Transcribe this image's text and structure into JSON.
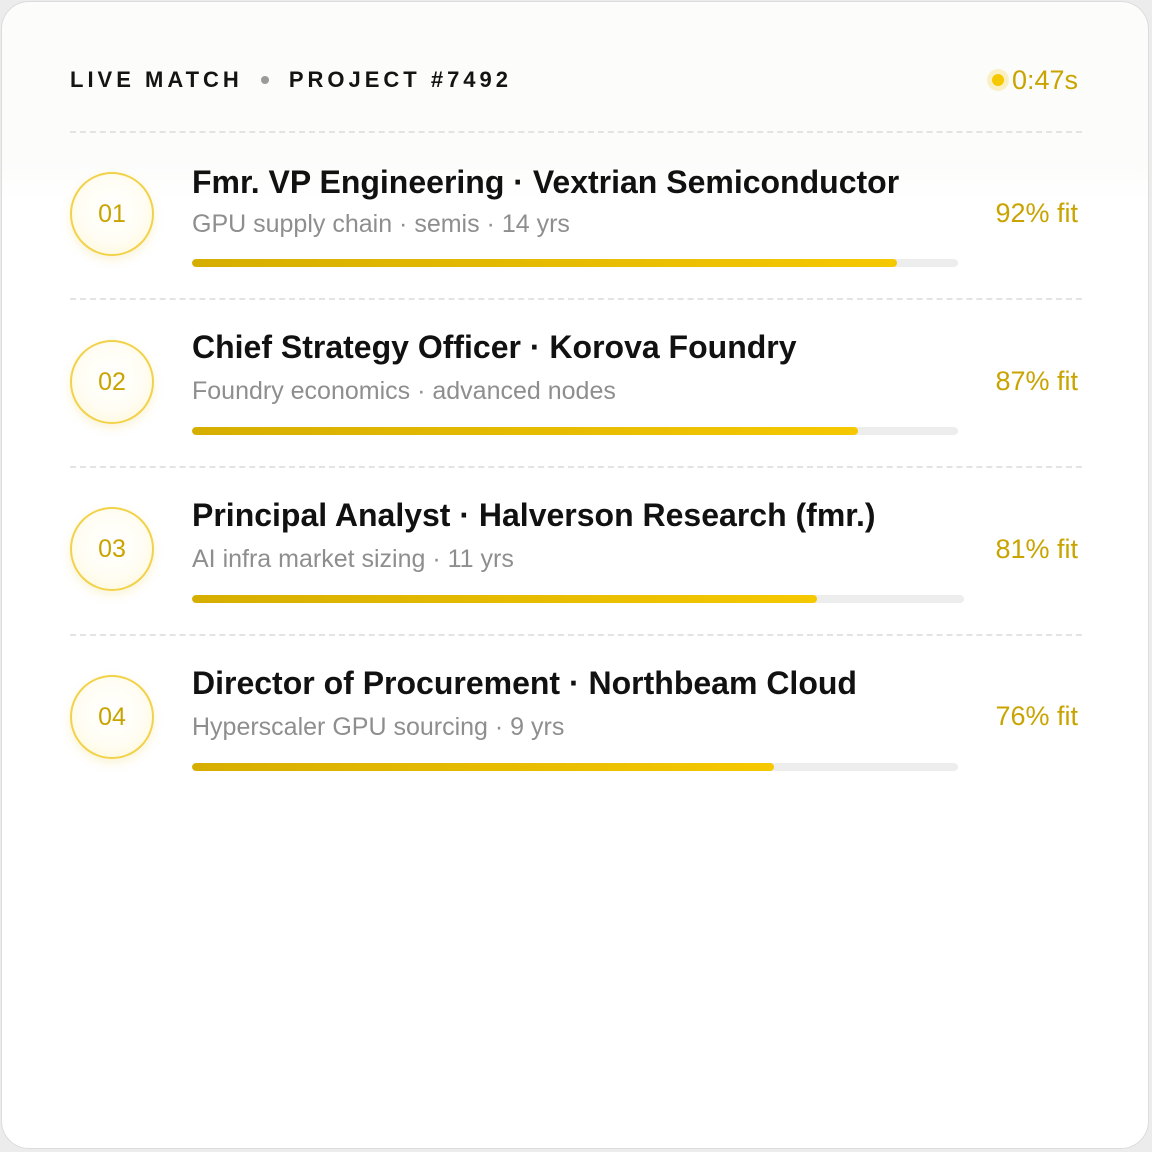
{
  "header": {
    "live_label": "LIVE MATCH",
    "project_label": "PROJECT #7492",
    "timer": "0:47s"
  },
  "colors": {
    "accent": "#f5c800",
    "accent_dark": "#c9a400",
    "track": "#ededed"
  },
  "matches": [
    {
      "rank": "01",
      "title": "Fmr. VP Engineering · Vextrian Semiconductor",
      "subtitle": "GPU supply chain · semis · 14 yrs",
      "fit_label": "92% fit",
      "fit": 0.92
    },
    {
      "rank": "02",
      "title": "Chief Strategy Officer · Korova Foundry",
      "subtitle": "Foundry economics · advanced nodes",
      "fit_label": "87% fit",
      "fit": 0.87
    },
    {
      "rank": "03",
      "title": "Principal Analyst · Halverson Research (fmr.)",
      "subtitle": "AI infra market sizing · 11 yrs",
      "fit_label": "81% fit",
      "fit": 0.81
    },
    {
      "rank": "04",
      "title": "Director of Procurement · Northbeam Cloud",
      "subtitle": "Hyperscaler GPU sourcing · 9 yrs",
      "fit_label": "76% fit",
      "fit": 0.76
    }
  ]
}
